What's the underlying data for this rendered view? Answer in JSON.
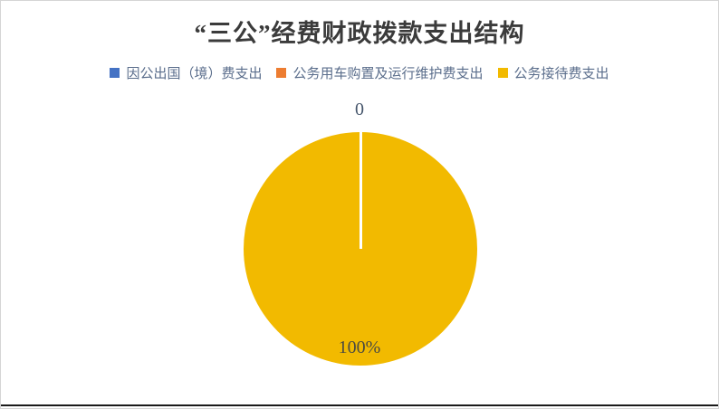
{
  "frame": {
    "border_color": "#d5d5d5",
    "bottom_rule_color": "#1a1a1a"
  },
  "chart": {
    "title": "“三公”经费财政拨款支出结构",
    "title_color": "#3b3b3b",
    "legend": {
      "text_color": "#5b6e8c",
      "items": [
        {
          "label": "因公出国（境）费支出",
          "color": "#4472C4"
        },
        {
          "label": "公务用车购置及运行维护费支出",
          "color": "#ED7D31"
        },
        {
          "label": "公务接待费支出",
          "color": "#F2BA00"
        }
      ]
    },
    "pie": {
      "color": "#F2BA00",
      "divider_color": "#ffffff"
    },
    "labels": {
      "top": {
        "text": "0",
        "color": "#44546A"
      },
      "bottom": {
        "text": "100%",
        "color": "#4a4a42"
      }
    }
  },
  "chart_data": {
    "type": "pie",
    "title": "“三公”经费财政拨款支出结构",
    "categories": [
      "因公出国（境）费支出",
      "公务用车购置及运行维护费支出",
      "公务接待费支出"
    ],
    "values": [
      0,
      0,
      100
    ],
    "unit": "percent_of_total",
    "colors": [
      "#4472C4",
      "#ED7D31",
      "#F2BA00"
    ],
    "legend_position": "top",
    "visible_data_labels": [
      {
        "value": "0",
        "position": "top-outside"
      },
      {
        "value": "100%",
        "position": "bottom-inside"
      }
    ]
  }
}
